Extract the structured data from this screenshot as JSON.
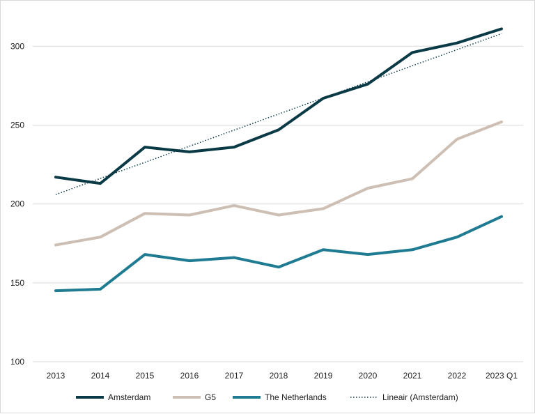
{
  "chart_data": {
    "type": "line",
    "categories": [
      "2013",
      "2014",
      "2015",
      "2016",
      "2017",
      "2018",
      "2019",
      "2020",
      "2021",
      "2022",
      "2023 Q1"
    ],
    "ylim": [
      100,
      320
    ],
    "yticks": [
      100,
      150,
      200,
      250,
      300
    ],
    "grid": true,
    "legend_position": "bottom",
    "series": [
      {
        "name": "Amsterdam",
        "color": "#0b3a47",
        "style": "solid",
        "values": [
          217,
          213,
          236,
          233,
          236,
          247,
          267,
          276,
          296,
          302,
          311
        ]
      },
      {
        "name": "G5",
        "color": "#cdbfb3",
        "style": "solid",
        "values": [
          174,
          179,
          194,
          193,
          199,
          193,
          197,
          210,
          216,
          241,
          252
        ]
      },
      {
        "name": "The Netherlands",
        "color": "#1e7b91",
        "style": "solid",
        "values": [
          145,
          146,
          168,
          164,
          166,
          160,
          171,
          168,
          171,
          179,
          192
        ]
      },
      {
        "name": "Lineair (Amsterdam)",
        "color": "#0b3a47",
        "style": "dotted",
        "values": [
          206,
          216.2,
          226.4,
          236.6,
          246.8,
          257,
          267.2,
          277.4,
          287.6,
          297.8,
          308
        ]
      }
    ]
  }
}
